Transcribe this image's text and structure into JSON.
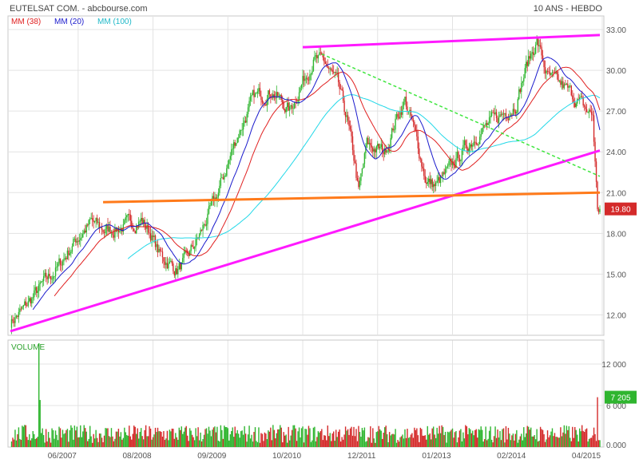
{
  "header": {
    "title": "EUTELSAT COM. - abcbourse.com",
    "period": "10 ANS - HEBDO"
  },
  "legend": [
    {
      "label": "MM (38)",
      "color": "#e02020"
    },
    {
      "label": "MM (20)",
      "color": "#1a1acc"
    },
    {
      "label": "MM (100)",
      "color": "#22d8e8"
    }
  ],
  "colors": {
    "up": "#2fb52f",
    "down": "#d42a2a",
    "trend_support": "#ff1aff",
    "trend_resistance": "#ff1aff",
    "horizontal": "#ff7a1a",
    "down_trend": "#3fe63f",
    "grid": "#e3e3e3",
    "frame": "#c8c8c8"
  },
  "chart_data": [
    {
      "type": "candlestick",
      "panel": "price",
      "title": "EUTELSAT COM.",
      "timeframe": "10 ANS - HEBDO",
      "ylim": [
        10.5,
        34.0
      ],
      "yticks": [
        12.0,
        15.0,
        18.0,
        21.0,
        24.0,
        27.0,
        30.0,
        33.0
      ],
      "ytick_labels": [
        "12.00",
        "15.00",
        "18.00",
        "21.00",
        "24.00",
        "27.00",
        "30.00",
        "33.00"
      ],
      "grid": true,
      "last_price": 19.8,
      "last_price_label": "19.80",
      "x_labels": [
        "06/2007",
        "08/2008",
        "09/2009",
        "10/2010",
        "12/2011",
        "01/2013",
        "02/2014",
        "04/2015"
      ],
      "price_path": [
        [
          0,
          11.5
        ],
        [
          10,
          12.3
        ],
        [
          25,
          14.0
        ],
        [
          40,
          15.5
        ],
        [
          55,
          17.5
        ],
        [
          68,
          18.8
        ],
        [
          80,
          18.2
        ],
        [
          95,
          18.5
        ],
        [
          110,
          19.0
        ],
        [
          118,
          18.0
        ],
        [
          125,
          16.5
        ],
        [
          140,
          15.3
        ],
        [
          148,
          16.0
        ],
        [
          160,
          18.0
        ],
        [
          175,
          21.0
        ],
        [
          190,
          25.0
        ],
        [
          205,
          28.0
        ],
        [
          220,
          28.5
        ],
        [
          235,
          27.0
        ],
        [
          245,
          29.0
        ],
        [
          255,
          30.8
        ],
        [
          265,
          30.5
        ],
        [
          275,
          29.0
        ],
        [
          283,
          26.5
        ],
        [
          290,
          23.0
        ],
        [
          293,
          21.0
        ],
        [
          300,
          24.5
        ],
        [
          315,
          24.0
        ],
        [
          325,
          26.5
        ],
        [
          332,
          27.8
        ],
        [
          340,
          25.5
        ],
        [
          350,
          21.8
        ],
        [
          358,
          21.5
        ],
        [
          368,
          22.5
        ],
        [
          380,
          24.0
        ],
        [
          395,
          25.5
        ],
        [
          410,
          26.5
        ],
        [
          425,
          27.5
        ],
        [
          435,
          30.5
        ],
        [
          443,
          32.2
        ],
        [
          452,
          29.5
        ],
        [
          465,
          28.8
        ],
        [
          475,
          28.0
        ],
        [
          485,
          27.0
        ],
        [
          490,
          26.7
        ],
        [
          494,
          19.8
        ]
      ],
      "moving_averages": [
        {
          "name": "MM (20)",
          "period": 20,
          "color": "#1a1acc"
        },
        {
          "name": "MM (38)",
          "period": 38,
          "color": "#e02020"
        },
        {
          "name": "MM (100)",
          "period": 100,
          "color": "#22d8e8"
        }
      ],
      "trend_lines": [
        {
          "kind": "support",
          "color": "#ff1aff",
          "from": {
            "x": 0,
            "y": 10.8
          },
          "to": {
            "x": 496,
            "y": 24.1
          }
        },
        {
          "kind": "resistance",
          "color": "#ff1aff",
          "from": {
            "x": 246,
            "y": 31.7
          },
          "to": {
            "x": 496,
            "y": 32.6
          }
        },
        {
          "kind": "horizontal",
          "color": "#ff7a1a",
          "from": {
            "x": 78,
            "y": 20.3
          },
          "to": {
            "x": 496,
            "y": 21.0
          }
        },
        {
          "kind": "downtrend",
          "color": "#3fe63f",
          "dashed": true,
          "from": {
            "x": 262,
            "y": 31.2
          },
          "to": {
            "x": 496,
            "y": 22.2
          }
        }
      ]
    },
    {
      "type": "bar",
      "panel": "volume",
      "title": "VOLUME",
      "ylim": [
        0,
        15000
      ],
      "yticks": [
        0,
        6000,
        12000
      ],
      "ytick_labels": [
        "0.000",
        "6 000",
        "12 000"
      ],
      "last_volume": 7205,
      "last_volume_label": "7 205",
      "spikes": [
        {
          "x": 24,
          "value": 15000
        },
        {
          "x": 25,
          "value": 6800
        },
        {
          "x": 12,
          "value": 3200
        },
        {
          "x": 289,
          "value": 2900
        },
        {
          "x": 303,
          "value": 3000
        },
        {
          "x": 494,
          "value": 7205
        }
      ]
    }
  ]
}
